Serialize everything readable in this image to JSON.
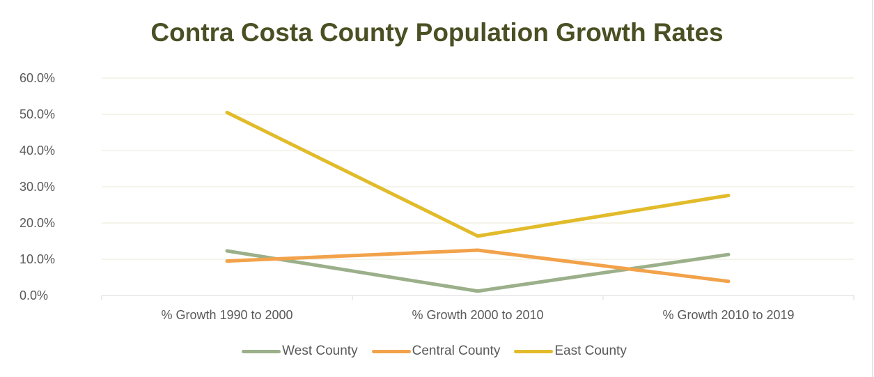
{
  "chart_data": {
    "type": "line",
    "title": "Contra Costa County Population Growth Rates",
    "categories": [
      "% Growth 1990 to 2000",
      "% Growth 2000 to 2010",
      "% Growth 2010 to 2019"
    ],
    "series": [
      {
        "name": "West County",
        "color": "#9bb08a",
        "values": [
          12.3,
          1.2,
          11.3
        ]
      },
      {
        "name": "Central County",
        "color": "#f2a24a",
        "values": [
          9.5,
          12.5,
          3.9
        ]
      },
      {
        "name": "East County",
        "color": "#e2bb2a",
        "values": [
          50.5,
          16.4,
          27.6
        ]
      }
    ],
    "y_ticks": [
      "0.0%",
      "10.0%",
      "20.0%",
      "30.0%",
      "40.0%",
      "50.0%",
      "60.0%"
    ],
    "ylim": [
      0,
      60
    ],
    "grid": true,
    "legend_position": "bottom",
    "colors": {
      "title": "#4a5023",
      "gridline": "#e9e9d6",
      "axis": "#d9d9d9",
      "tick_text": "#595959"
    }
  }
}
